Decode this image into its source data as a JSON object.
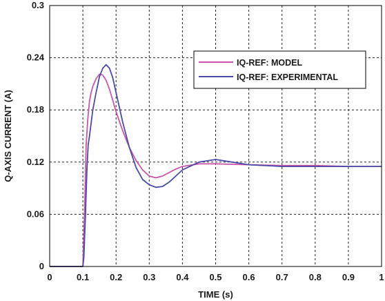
{
  "chart_data": {
    "type": "line",
    "xlabel": "TIME (s)",
    "ylabel": "Q-AXIS CURRENT (A)",
    "xlim": [
      0,
      1
    ],
    "ylim": [
      0,
      0.3
    ],
    "xticks": [
      0,
      0.1,
      0.2,
      0.3,
      0.4,
      0.5,
      0.6,
      0.7,
      0.8,
      0.9,
      1
    ],
    "yticks": [
      0,
      0.06,
      0.12,
      0.18,
      0.24,
      0.3
    ],
    "xtick_labels": [
      "0",
      "0.1",
      "0.2",
      "0.3",
      "0.4",
      "0.5",
      "0.6",
      "0.7",
      "0.8",
      "0.9",
      "1"
    ],
    "ytick_labels": [
      "0",
      "0.06",
      "0.12",
      "0.18",
      "0.24",
      "0.3"
    ],
    "grid": true,
    "legend_position": "top-right",
    "series": [
      {
        "name": "IQ-REF: MODEL",
        "color": "#cc55aa",
        "x": [
          0,
          0.1,
          0.105,
          0.11,
          0.115,
          0.12,
          0.125,
          0.13,
          0.14,
          0.15,
          0.16,
          0.17,
          0.18,
          0.19,
          0.2,
          0.22,
          0.24,
          0.26,
          0.28,
          0.3,
          0.32,
          0.34,
          0.36,
          0.38,
          0.4,
          0.45,
          0.5,
          0.6,
          0.7,
          0.8,
          0.9,
          1
        ],
        "y": [
          0,
          0,
          0.06,
          0.14,
          0.17,
          0.19,
          0.2,
          0.207,
          0.216,
          0.221,
          0.22,
          0.214,
          0.204,
          0.191,
          0.178,
          0.156,
          0.137,
          0.122,
          0.111,
          0.104,
          0.102,
          0.104,
          0.108,
          0.112,
          0.115,
          0.118,
          0.118,
          0.117,
          0.116,
          0.116,
          0.115,
          0.115
        ]
      },
      {
        "name": "IQ-REF: EXPERIMENTAL",
        "color": "#4a4aa8",
        "x": [
          0,
          0.1,
          0.103,
          0.108,
          0.112,
          0.116,
          0.12,
          0.125,
          0.13,
          0.14,
          0.15,
          0.16,
          0.17,
          0.18,
          0.19,
          0.2,
          0.22,
          0.24,
          0.26,
          0.28,
          0.3,
          0.32,
          0.34,
          0.36,
          0.38,
          0.4,
          0.45,
          0.5,
          0.55,
          0.6,
          0.7,
          0.8,
          0.9,
          1
        ],
        "y": [
          0,
          0,
          0.01,
          0.06,
          0.11,
          0.14,
          0.15,
          0.165,
          0.18,
          0.2,
          0.218,
          0.228,
          0.232,
          0.228,
          0.217,
          0.2,
          0.166,
          0.137,
          0.114,
          0.1,
          0.094,
          0.091,
          0.092,
          0.097,
          0.104,
          0.111,
          0.12,
          0.123,
          0.12,
          0.117,
          0.115,
          0.115,
          0.115,
          0.115
        ]
      }
    ]
  }
}
